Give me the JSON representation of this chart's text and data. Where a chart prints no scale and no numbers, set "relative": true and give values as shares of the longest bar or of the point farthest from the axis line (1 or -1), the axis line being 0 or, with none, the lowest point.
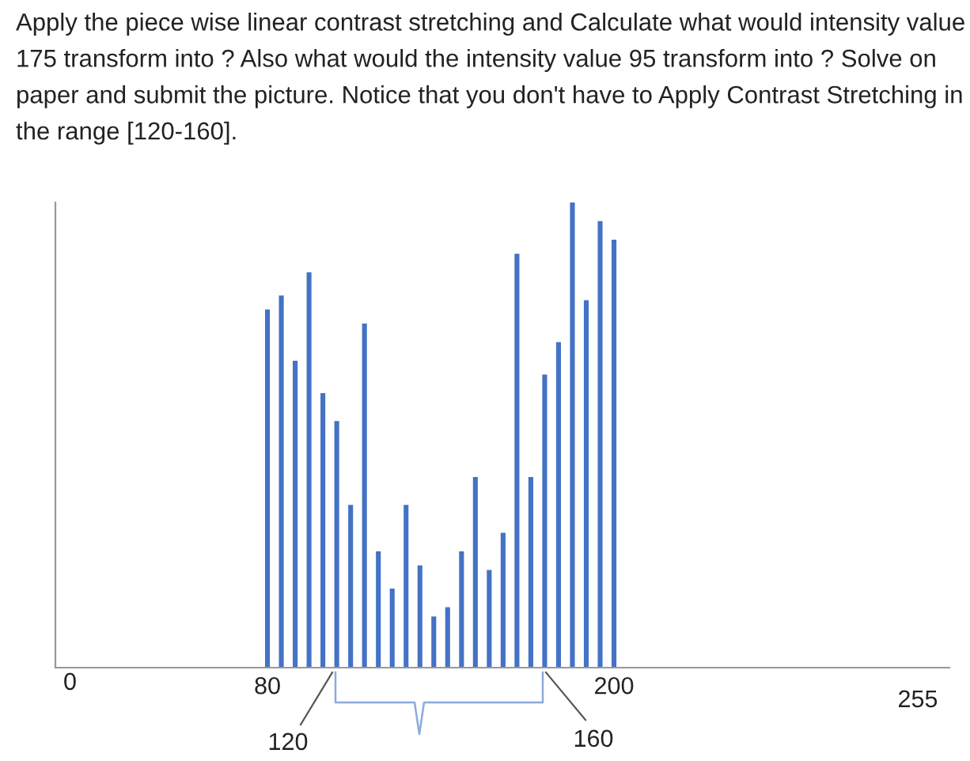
{
  "chart_data": {
    "type": "bar",
    "title": "Apply the piece wise linear contrast stretching and Calculate what would intensity value 175 transform into ? Also what would the intensity value 95 transform into ? Solve on paper and submit the picture. Notice that you don't have to Apply Contrast Stretching in the range [120-160].",
    "categories": [
      "80",
      null,
      null,
      null,
      null,
      null,
      null,
      null,
      null,
      null,
      null,
      null,
      null,
      null,
      null,
      null,
      null,
      null,
      null,
      null,
      null,
      null,
      null,
      null,
      null,
      "200"
    ],
    "values": [
      0.77,
      0.8,
      0.66,
      0.85,
      0.59,
      0.53,
      0.35,
      0.74,
      0.25,
      0.17,
      0.35,
      0.22,
      0.11,
      0.13,
      0.25,
      0.41,
      0.21,
      0.29,
      0.89,
      0.41,
      0.63,
      0.7,
      1,
      0.79,
      0.96,
      0.92
    ],
    "relative": true,
    "color": "#4472c4",
    "annotations": [
      "0",
      "255",
      "120",
      "160"
    ]
  }
}
